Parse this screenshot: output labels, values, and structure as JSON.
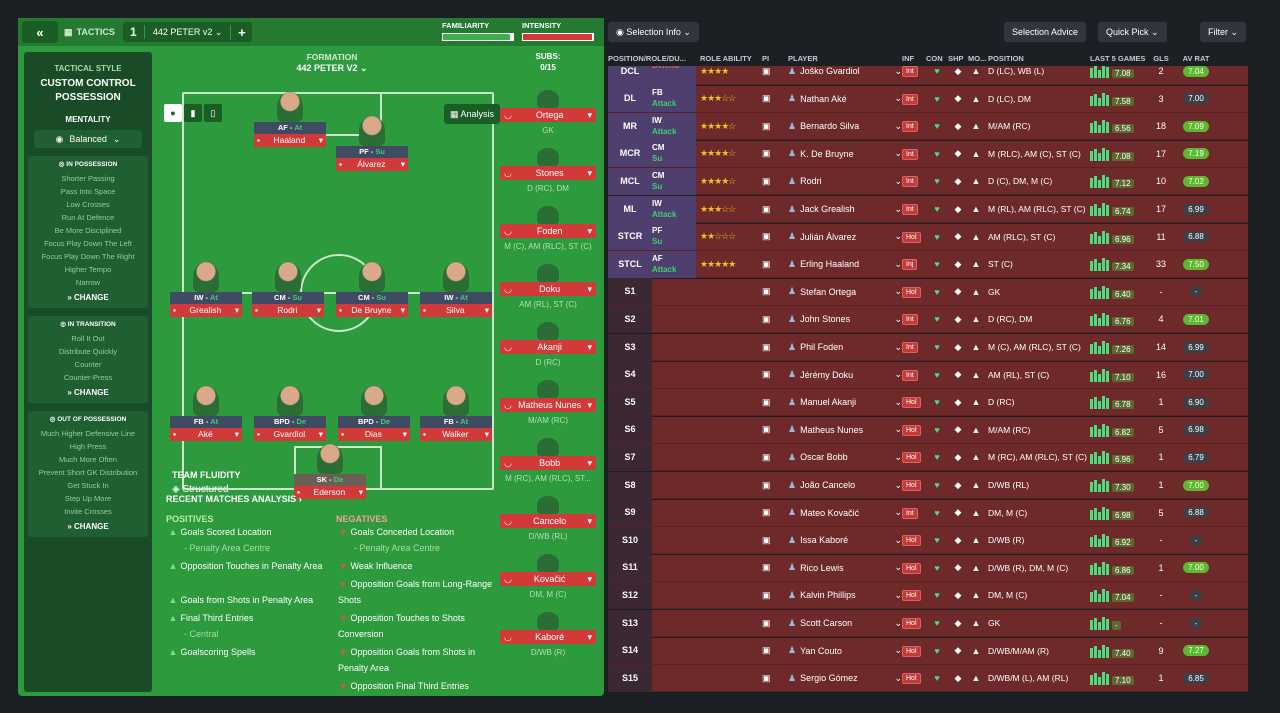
{
  "header": {
    "back": "«",
    "tab_label": "TACTICS",
    "tactic_number": "1",
    "tactic_name": "442 PETER v2",
    "add": "+",
    "familiarity": "FAMILIARITY",
    "intensity": "INTENSITY",
    "familiarity_level": 0.95,
    "intensity_level": 0.98
  },
  "tactical_style": {
    "heading": "TACTICAL STYLE",
    "name": "CUSTOM CONTROL POSSESSION",
    "mentality_heading": "MENTALITY",
    "mentality": "Balanced"
  },
  "in_possession": {
    "heading": "IN POSSESSION",
    "items": [
      "Shorter Passing",
      "Pass Into Space",
      "Low Crosses",
      "Run At Defence",
      "Be More Disciplined",
      "Focus Play Down The Left",
      "Focus Play Down The Right",
      "Higher Tempo",
      "Narrow"
    ],
    "change": "CHANGE"
  },
  "in_transition": {
    "heading": "IN TRANSITION",
    "items": [
      "Roll It Out",
      "Distribute Quickly",
      "Counter",
      "Counter-Press"
    ],
    "change": "CHANGE"
  },
  "out_of_possession": {
    "heading": "OUT OF POSSESSION",
    "items": [
      "Much Higher Defensive Line",
      "High Press",
      "Much More Often",
      "Prevent Short GK Distribution",
      "Get Stuck In",
      "Step Up More",
      "Invite Crosses"
    ],
    "change": "CHANGE"
  },
  "formation": {
    "label": "FORMATION",
    "name": "442 PETER V2",
    "analysis": "Analysis",
    "team_fluidity_label": "TEAM FLUIDITY",
    "team_fluidity": "Structured"
  },
  "pitch_players": [
    {
      "code": "AF",
      "duty": "At",
      "name": "Haaland"
    },
    {
      "code": "PF",
      "duty": "Su",
      "name": "Álvarez"
    },
    {
      "code": "IW",
      "duty": "At",
      "name": "Grealish"
    },
    {
      "code": "CM",
      "duty": "Su",
      "name": "Rodri"
    },
    {
      "code": "CM",
      "duty": "Su",
      "name": "De Bruyne"
    },
    {
      "code": "IW",
      "duty": "At",
      "name": "Silva"
    },
    {
      "code": "FB",
      "duty": "At",
      "name": "Aké"
    },
    {
      "code": "BPD",
      "duty": "De",
      "name": "Gvardiol"
    },
    {
      "code": "BPD",
      "duty": "De",
      "name": "Dias"
    },
    {
      "code": "FB",
      "duty": "At",
      "name": "Walker"
    },
    {
      "code": "SK",
      "duty": "De",
      "name": "Ederson"
    }
  ],
  "subs": {
    "heading": "SUBS:",
    "count": "0/15",
    "items": [
      {
        "name": "Ortega",
        "pos": "GK"
      },
      {
        "name": "Stones",
        "pos": "D (RC), DM"
      },
      {
        "name": "Foden",
        "pos": "M (C), AM (RLC), ST (C)"
      },
      {
        "name": "Doku",
        "pos": "AM (RL), ST (C)"
      },
      {
        "name": "Akanji",
        "pos": "D (RC)"
      },
      {
        "name": "Matheus Nunes",
        "pos": "M/AM (RC)"
      },
      {
        "name": "Bobb",
        "pos": "M (RC), AM (RLC), ST..."
      },
      {
        "name": "Cancelo",
        "pos": "D/WB (RL)"
      },
      {
        "name": "Kovačić",
        "pos": "DM, M (C)"
      },
      {
        "name": "Kaboré",
        "pos": "D/WB (R)"
      }
    ]
  },
  "recent": {
    "heading": "RECENT MATCHES ANALYSIS",
    "positives_heading": "POSITIVES",
    "negatives_heading": "NEGATIVES",
    "positives": [
      {
        "t": "Goals Scored Location",
        "s": "- Penalty Area Centre"
      },
      {
        "t": "Opposition Touches in Penalty Area",
        "s": ""
      },
      {
        "t": "Goals from Shots in Penalty Area",
        "s": ""
      },
      {
        "t": "Final Third Entries",
        "s": "- Central"
      },
      {
        "t": "Goalscoring Spells",
        "s": ""
      }
    ],
    "negatives": [
      {
        "t": "Goals Conceded Location",
        "s": "- Penalty Area Centre"
      },
      {
        "t": "Weak Influence",
        "s": ""
      },
      {
        "t": "Opposition Goals from Long-Range Shots",
        "s": ""
      },
      {
        "t": "Opposition Touches to Shots Conversion",
        "s": ""
      },
      {
        "t": "Opposition Goals from Shots in Penalty Area",
        "s": ""
      },
      {
        "t": "Opposition Final Third Entries",
        "s": ""
      }
    ]
  },
  "right_toolbar": {
    "selection_info": "Selection Info",
    "selection_advice": "Selection Advice",
    "quick_pick": "Quick Pick",
    "filter": "Filter"
  },
  "columns": {
    "position": "POSITION/ROLE/DU...",
    "ability": "ROLE ABILITY",
    "pi": "PI",
    "player": "PLAYER",
    "inf": "INF",
    "con": "CON",
    "shp": "SHP",
    "mo": "MO...",
    "pos": "POSITION",
    "last5": "LAST 5 GAMES",
    "gls": "GLS",
    "avrat": "AV RAT"
  },
  "rows": [
    {
      "p": "DCL",
      "role": "",
      "duty": "Defend",
      "stars": "★★★★",
      "player": "Joško Gvardiol",
      "inf": "Int",
      "posn": "D (LC), WB (L)",
      "rating": "7.08",
      "gls": "2",
      "av": "7.04",
      "g": true
    },
    {
      "p": "DL",
      "role": "FB",
      "duty": "Attack",
      "stars": "★★★☆☆",
      "player": "Nathan Aké",
      "inf": "Int",
      "posn": "D (LC), DM",
      "rating": "7.58",
      "gls": "3",
      "av": "7.00",
      "g": false
    },
    {
      "p": "MR",
      "role": "IW",
      "duty": "Attack",
      "stars": "★★★★☆",
      "player": "Bernardo Silva",
      "inf": "Int",
      "posn": "M/AM (RC)",
      "rating": "6.56",
      "gls": "18",
      "av": "7.09",
      "g": true
    },
    {
      "p": "MCR",
      "role": "CM",
      "duty": "Su",
      "stars": "★★★★☆",
      "player": "K. De Bruyne",
      "inf": "Int",
      "posn": "M (RLC), AM (C), ST (C)",
      "rating": "7.08",
      "gls": "17",
      "av": "7.19",
      "g": true
    },
    {
      "p": "MCL",
      "role": "CM",
      "duty": "Su",
      "stars": "★★★★☆",
      "player": "Rodri",
      "inf": "Int",
      "posn": "D (C), DM, M (C)",
      "rating": "7.12",
      "gls": "10",
      "av": "7.02",
      "g": true
    },
    {
      "p": "ML",
      "role": "IW",
      "duty": "Attack",
      "stars": "★★★☆☆",
      "player": "Jack Grealish",
      "inf": "Int",
      "posn": "M (RL), AM (RLC), ST (C)",
      "rating": "6.74",
      "gls": "17",
      "av": "6.99",
      "g": false
    },
    {
      "p": "STCR",
      "role": "PF",
      "duty": "Su",
      "stars": "★★☆☆☆",
      "player": "Julián Álvarez",
      "inf": "Hol",
      "posn": "AM (RLC), ST (C)",
      "rating": "6.96",
      "gls": "11",
      "av": "6.88",
      "g": false
    },
    {
      "p": "STCL",
      "role": "AF",
      "duty": "Attack",
      "stars": "★★★★★",
      "player": "Erling Haaland",
      "inf": "Inj",
      "posn": "ST (C)",
      "rating": "7.34",
      "gls": "33",
      "av": "7.50",
      "g": true
    },
    {
      "p": "S1",
      "role": "",
      "duty": "",
      "stars": "",
      "player": "Stefan Ortega",
      "inf": "Hol",
      "posn": "GK",
      "rating": "6.40",
      "gls": "-",
      "av": "-",
      "g": false
    },
    {
      "p": "S2",
      "role": "",
      "duty": "",
      "stars": "",
      "player": "John Stones",
      "inf": "Int",
      "posn": "D (RC), DM",
      "rating": "6.76",
      "gls": "4",
      "av": "7.01",
      "g": true
    },
    {
      "p": "S3",
      "role": "",
      "duty": "",
      "stars": "",
      "player": "Phil Foden",
      "inf": "Int",
      "posn": "M (C), AM (RLC), ST (C)",
      "rating": "7.26",
      "gls": "14",
      "av": "6.99",
      "g": false
    },
    {
      "p": "S4",
      "role": "",
      "duty": "",
      "stars": "",
      "player": "Jérémy Doku",
      "inf": "Int",
      "posn": "AM (RL), ST (C)",
      "rating": "7.10",
      "gls": "16",
      "av": "7.00",
      "g": false
    },
    {
      "p": "S5",
      "role": "",
      "duty": "",
      "stars": "",
      "player": "Manuel Akanji",
      "inf": "Hol",
      "posn": "D (RC)",
      "rating": "6.78",
      "gls": "1",
      "av": "6.90",
      "g": false
    },
    {
      "p": "S6",
      "role": "",
      "duty": "",
      "stars": "",
      "player": "Matheus Nunes",
      "inf": "Hol",
      "posn": "M/AM (RC)",
      "rating": "6.82",
      "gls": "5",
      "av": "6.98",
      "g": false
    },
    {
      "p": "S7",
      "role": "",
      "duty": "",
      "stars": "",
      "player": "Oscar Bobb",
      "inf": "Hol",
      "posn": "M (RC), AM (RLC), ST (C)",
      "rating": "6.96",
      "gls": "1",
      "av": "6.79",
      "g": false
    },
    {
      "p": "S8",
      "role": "",
      "duty": "",
      "stars": "",
      "player": "João Cancelo",
      "inf": "Hol",
      "posn": "D/WB (RL)",
      "rating": "7.30",
      "gls": "1",
      "av": "7.00",
      "g": true
    },
    {
      "p": "S9",
      "role": "",
      "duty": "",
      "stars": "",
      "player": "Mateo Kovačić",
      "inf": "Int",
      "posn": "DM, M (C)",
      "rating": "6.98",
      "gls": "5",
      "av": "6.88",
      "g": false
    },
    {
      "p": "S10",
      "role": "",
      "duty": "",
      "stars": "",
      "player": "Issa Kaboré",
      "inf": "Hol",
      "posn": "D/WB (R)",
      "rating": "6.92",
      "gls": "-",
      "av": "-",
      "g": false
    },
    {
      "p": "S11",
      "role": "",
      "duty": "",
      "stars": "",
      "player": "Rico Lewis",
      "inf": "Hol",
      "posn": "D/WB (R), DM, M (C)",
      "rating": "6.86",
      "gls": "1",
      "av": "7.00",
      "g": true
    },
    {
      "p": "S12",
      "role": "",
      "duty": "",
      "stars": "",
      "player": "Kalvin Phillips",
      "inf": "Hol",
      "posn": "DM, M (C)",
      "rating": "7.04",
      "gls": "-",
      "av": "-",
      "g": false
    },
    {
      "p": "S13",
      "role": "",
      "duty": "",
      "stars": "",
      "player": "Scott Carson",
      "inf": "Hol",
      "posn": "GK",
      "rating": "-",
      "gls": "-",
      "av": "-",
      "g": false
    },
    {
      "p": "S14",
      "role": "",
      "duty": "",
      "stars": "",
      "player": "Yan Couto",
      "inf": "Hol",
      "posn": "D/WB/M/AM (R)",
      "rating": "7.40",
      "gls": "9",
      "av": "7.27",
      "g": true
    },
    {
      "p": "S15",
      "role": "",
      "duty": "",
      "stars": "",
      "player": "Sergio Gómez",
      "inf": "Hol",
      "posn": "D/WB/M (L), AM (RL)",
      "rating": "7.10",
      "gls": "1",
      "av": "6.85",
      "g": false
    }
  ]
}
